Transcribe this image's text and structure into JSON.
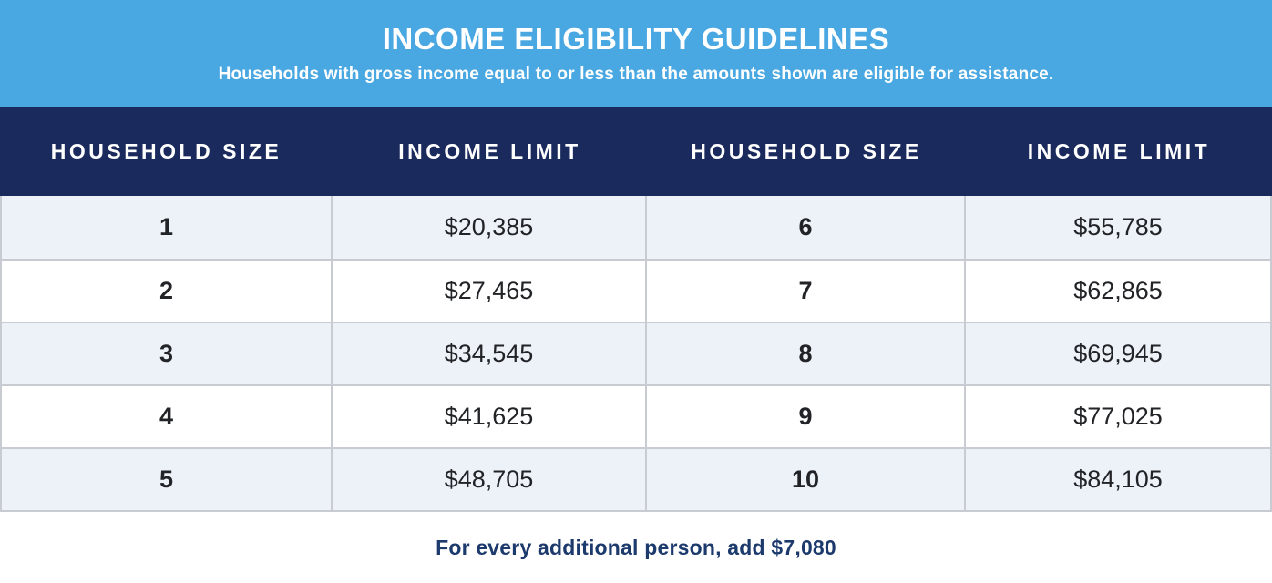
{
  "banner": {
    "title": "INCOME ELIGIBILITY GUIDELINES",
    "subtitle": "Households with gross income equal to or less than the amounts shown are eligible for assistance."
  },
  "table": {
    "columns": [
      "HOUSEHOLD SIZE",
      "INCOME LIMIT",
      "HOUSEHOLD SIZE",
      "INCOME LIMIT"
    ],
    "rows": [
      [
        "1",
        "$20,385",
        "6",
        "$55,785"
      ],
      [
        "2",
        "$27,465",
        "7",
        "$62,865"
      ],
      [
        "3",
        "$34,545",
        "8",
        "$69,945"
      ],
      [
        "4",
        "$41,625",
        "9",
        "$77,025"
      ],
      [
        "5",
        "$48,705",
        "10",
        "$84,105"
      ]
    ]
  },
  "footer": {
    "note": "For every additional person, add $7,080"
  },
  "colors": {
    "banner_blue": "#49a7e2",
    "header_navy": "#1a2a5c",
    "row_stripe": "#edf1f8",
    "row_white": "#ffffff",
    "grid_border": "#c8ccd2",
    "footer_text_navy": "#1d3a6d",
    "cell_text": "#212326"
  },
  "chart_data": {
    "type": "table",
    "title": "INCOME ELIGIBILITY GUIDELINES",
    "subtitle": "Households with gross income equal to or less than the amounts shown are eligible for assistance.",
    "columns": [
      "HOUSEHOLD SIZE",
      "INCOME LIMIT",
      "HOUSEHOLD SIZE",
      "INCOME LIMIT"
    ],
    "rows": [
      [
        "1",
        "$20,385",
        "6",
        "$55,785"
      ],
      [
        "2",
        "$27,465",
        "7",
        "$62,865"
      ],
      [
        "3",
        "$34,545",
        "8",
        "$69,945"
      ],
      [
        "4",
        "$41,625",
        "9",
        "$77,025"
      ],
      [
        "5",
        "$48,705",
        "10",
        "$84,105"
      ]
    ],
    "income_limit_by_household_size": {
      "1": 20385,
      "2": 27465,
      "3": 34545,
      "4": 41625,
      "5": 48705,
      "6": 55785,
      "7": 62865,
      "8": 69945,
      "9": 77025,
      "10": 84105
    },
    "additional_person_increment": 7080,
    "note": "For every additional person, add $7,080"
  }
}
